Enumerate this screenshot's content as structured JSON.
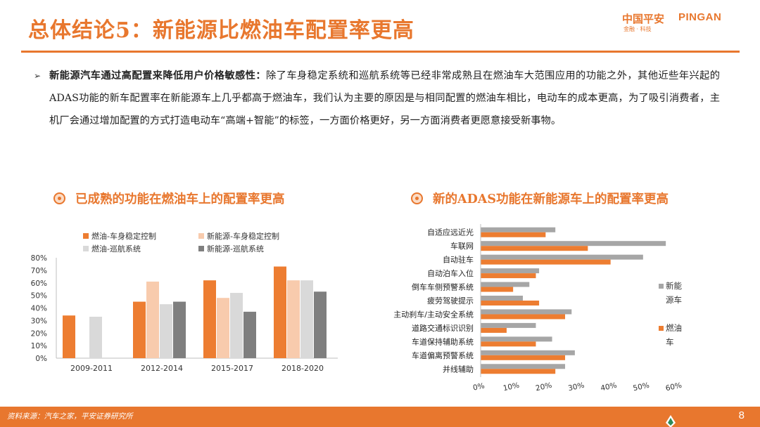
{
  "title": "总体结论5：新能源比燃油车配置率更高",
  "logo": {
    "cn": "中国平安",
    "en": "PINGAN",
    "sub": "金融 · 科技"
  },
  "paragraph": {
    "lead": "新能源汽车通过高配置来降低用户价格敏感性：",
    "body": "除了车身稳定系统和巡航系统等已经非常成熟且在燃油车大范围应用的功能之外，其他近些年兴起的ADAS功能的新车配置率在新能源车上几乎都高于燃油车，我们认为主要的原因是与相同配置的燃油车相比，电动车的成本更高，为了吸引消费者，主机厂会通过增加配置的方式打造电动车“高端+智能”的标签，一方面价格更好，另一方面消费者更愿意接受新事物。"
  },
  "sub_left": "已成熟的功能在燃油车上的配置率更高",
  "sub_right": "新的ADAS功能在新能源车上的配置率更高",
  "colors": {
    "orange": "#ed7d31",
    "peach": "#f8cbad",
    "lightgray": "#d9d9d9",
    "darkgray": "#7f7f7f",
    "gray": "#a6a6a6",
    "accent": "#e8772e"
  },
  "chart_data": [
    {
      "type": "bar",
      "categories": [
        "2009-2011",
        "2012-2014",
        "2015-2017",
        "2018-2020"
      ],
      "series": [
        {
          "name": "燃油-车身稳定控制",
          "values": [
            34,
            45,
            62,
            73
          ]
        },
        {
          "name": "新能源-车身稳定控制",
          "values": [
            null,
            61,
            48,
            62
          ]
        },
        {
          "name": "燃油-巡航系统",
          "values": [
            33,
            43,
            52,
            62
          ]
        },
        {
          "name": "新能源-巡航系统",
          "values": [
            null,
            45,
            37,
            53
          ]
        }
      ],
      "yticks": [
        "0%",
        "10%",
        "20%",
        "30%",
        "40%",
        "50%",
        "60%",
        "70%",
        "80%"
      ],
      "ylim": [
        0,
        80
      ],
      "legend": "top"
    },
    {
      "type": "bar",
      "orientation": "horizontal",
      "categories": [
        "自适应远近光",
        "车联网",
        "自动驻车",
        "自动泊车入位",
        "倒车车侧预警系统",
        "疲劳驾驶提示",
        "主动刹车/主动安全系统",
        "道路交通标识识别",
        "车道保持辅助系统",
        "车道偏离预警系统",
        "并线辅助"
      ],
      "series": [
        {
          "name": "新能源车",
          "values": [
            23,
            57,
            50,
            18,
            15,
            13,
            28,
            17,
            22,
            29,
            26
          ]
        },
        {
          "name": "燃油车",
          "values": [
            20,
            33,
            40,
            17,
            10,
            18,
            26,
            8,
            17,
            26,
            23
          ]
        }
      ],
      "xticks": [
        "0%",
        "10%",
        "20%",
        "30%",
        "40%",
        "50%",
        "60%"
      ],
      "xlim": [
        0,
        60
      ],
      "legend": "right"
    }
  ],
  "footer": {
    "source": "资料来源：汽车之家，平安证券研究所",
    "page": "8"
  }
}
